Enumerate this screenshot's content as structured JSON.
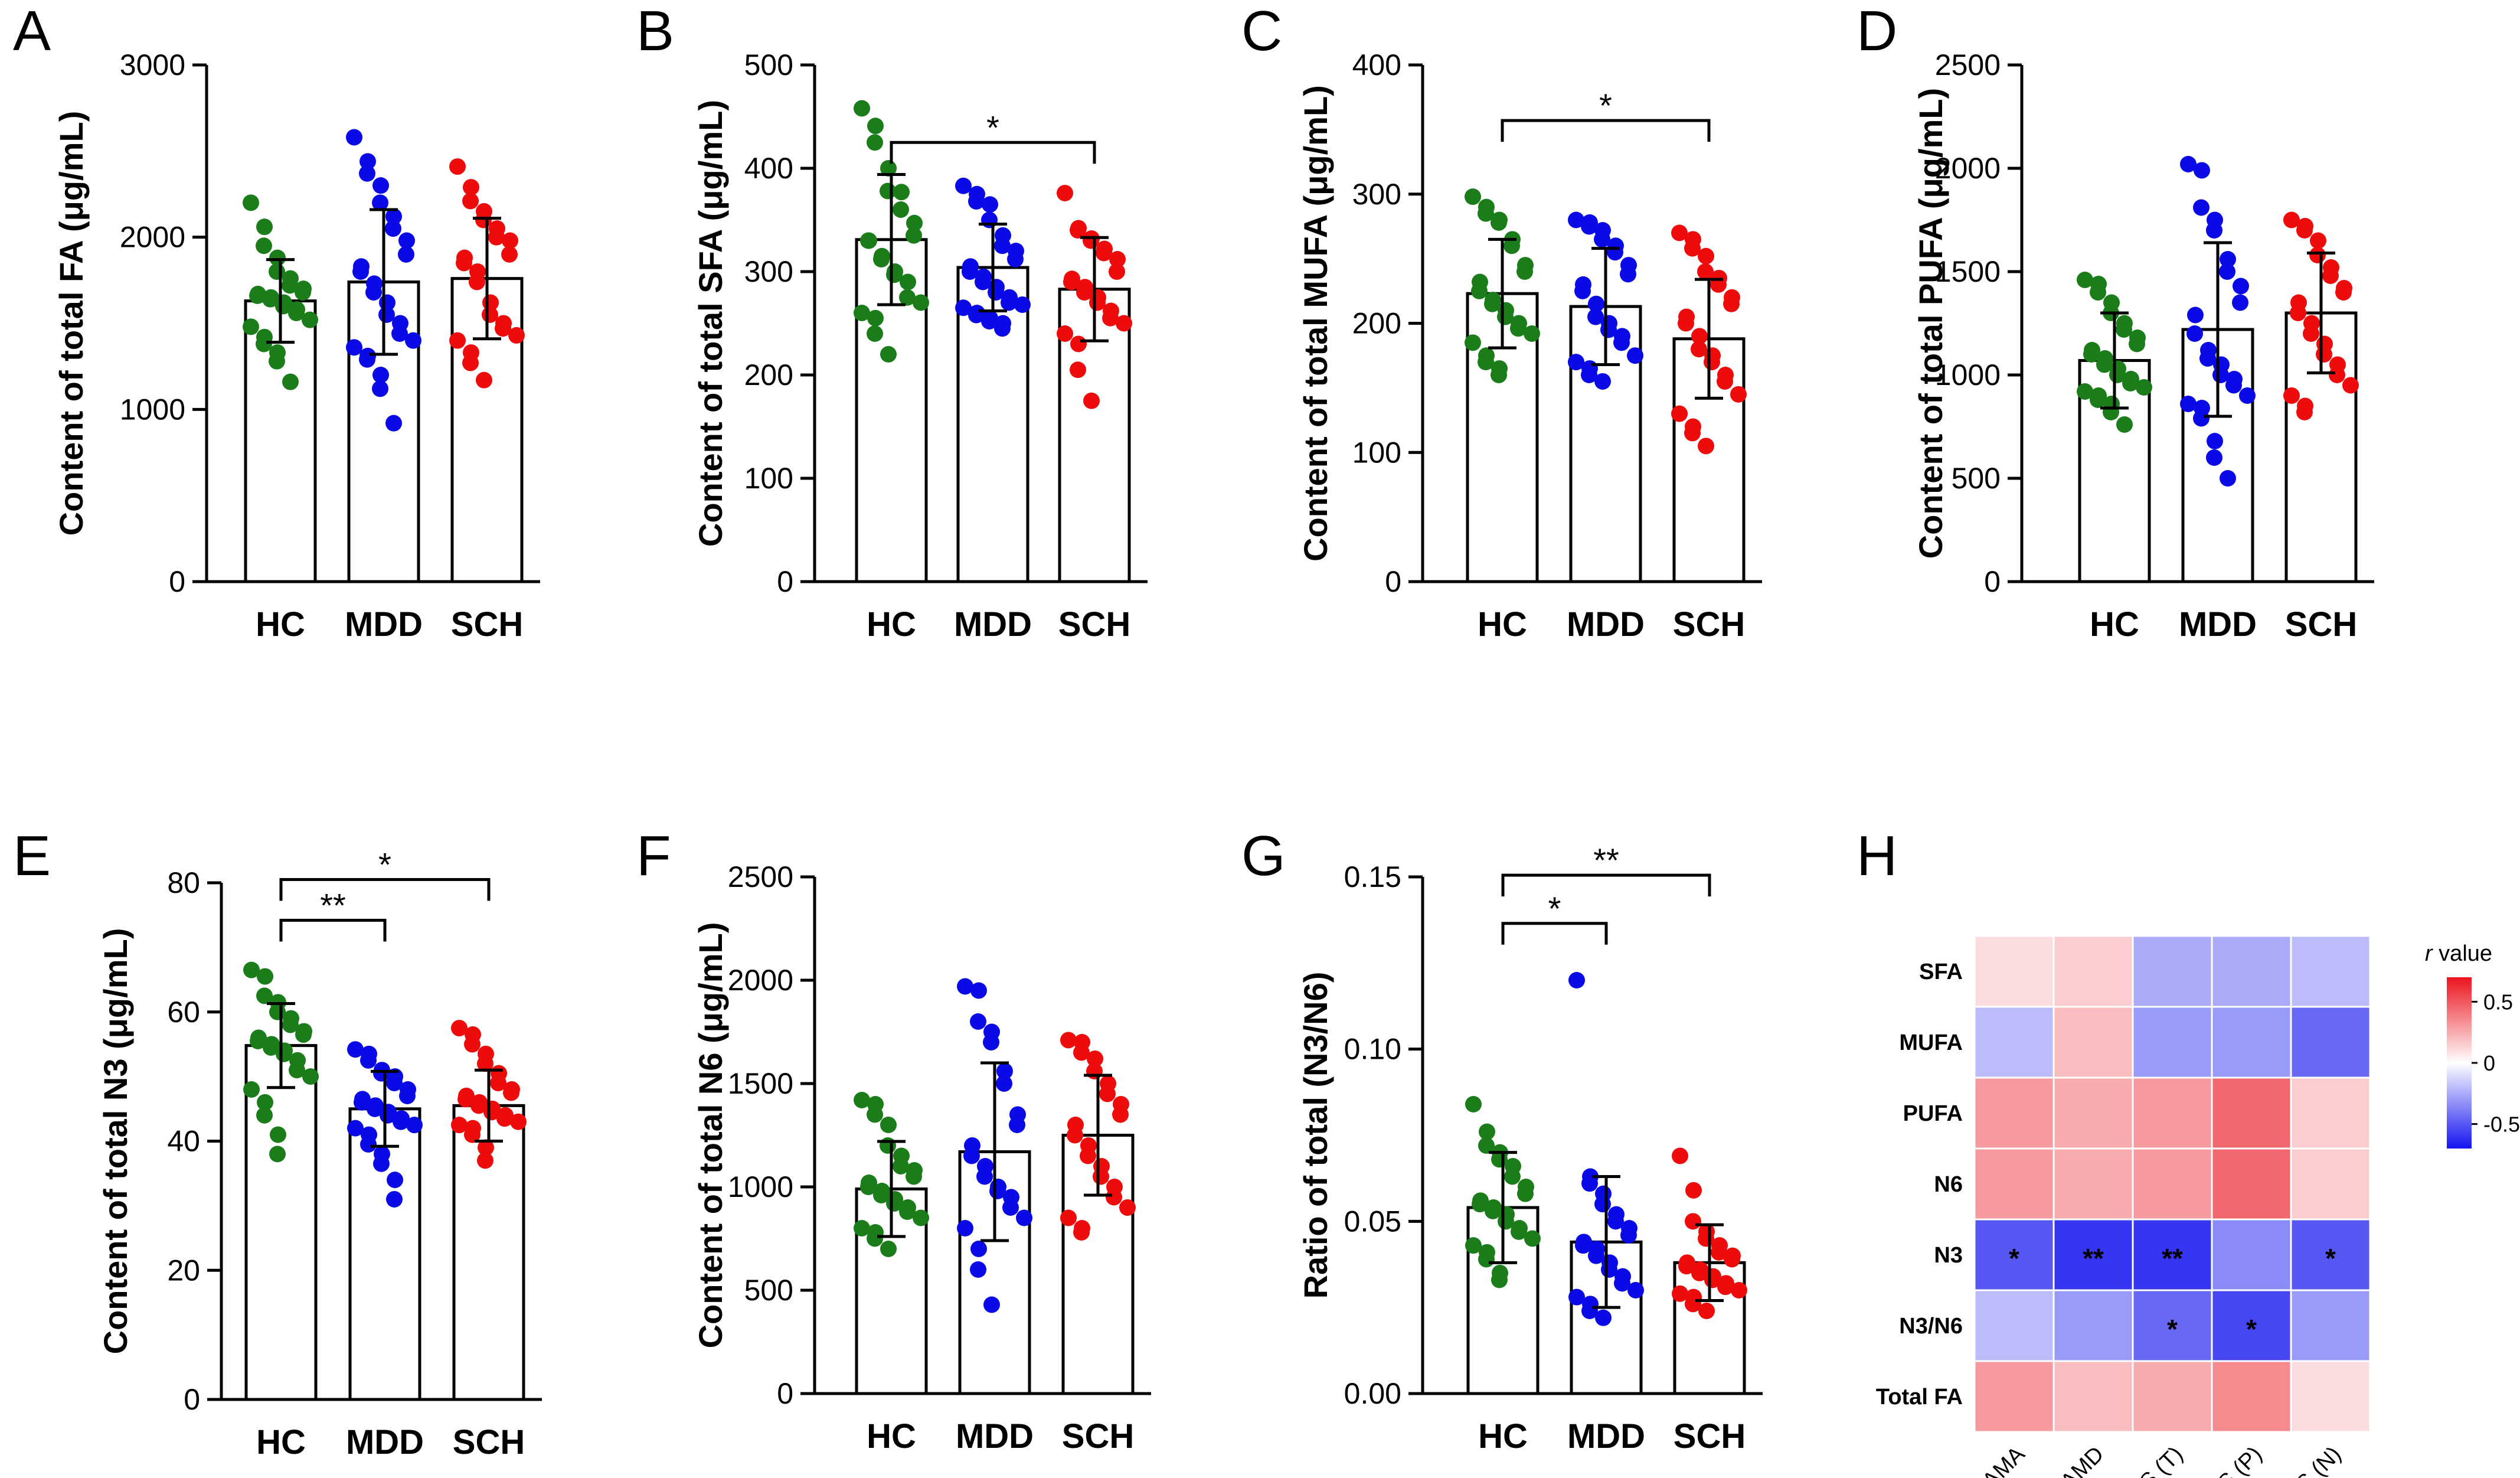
{
  "colors": {
    "HC": "#1a7d1a",
    "MDD": "#0a0ae6",
    "SCH": "#ee0b0b",
    "axis": "#000000"
  },
  "chart_data": [
    {
      "type": "bar",
      "panel": "A",
      "ylabel": "Content of total FA (μg/mL)",
      "categories": [
        "HC",
        "MDD",
        "SCH"
      ],
      "ylim": [
        0,
        3000
      ],
      "yticks": [
        0,
        1000,
        2000,
        3000
      ],
      "means": [
        1630,
        1740,
        1760
      ],
      "sd": [
        240,
        420,
        350
      ],
      "points": [
        [
          2200,
          2060,
          1950,
          1880,
          1800,
          1760,
          1720,
          1700,
          1680,
          1670,
          1660,
          1650,
          1640,
          1620,
          1600,
          1580,
          1560,
          1520,
          1480,
          1420,
          1380,
          1330,
          1280,
          1160
        ],
        [
          2580,
          2440,
          2370,
          2300,
          2200,
          2120,
          2050,
          1980,
          1900,
          1830,
          1800,
          1730,
          1680,
          1620,
          1550,
          1500,
          1440,
          1400,
          1360,
          1310,
          1290,
          1200,
          1120,
          920
        ],
        [
          2410,
          2290,
          2210,
          2150,
          2100,
          2050,
          2000,
          1980,
          1900,
          1880,
          1850,
          1800,
          1740,
          1620,
          1550,
          1500,
          1470,
          1430,
          1400,
          1330,
          1270,
          1170
        ]
      ],
      "sig": []
    },
    {
      "type": "bar",
      "panel": "B",
      "ylabel": "Content of total SFA (μg/mL)",
      "categories": [
        "HC",
        "MDD",
        "SCH"
      ],
      "ylim": [
        0,
        500
      ],
      "yticks": [
        0,
        100,
        200,
        300,
        400,
        500
      ],
      "means": [
        331,
        304,
        283
      ],
      "sd": [
        63,
        42,
        50
      ],
      "points": [
        [
          458,
          441,
          425,
          400,
          378,
          377,
          360,
          347,
          335,
          330,
          330,
          315,
          312,
          300,
          297,
          290,
          275,
          270,
          260,
          255,
          240,
          220
        ],
        [
          383,
          375,
          368,
          365,
          350,
          335,
          325,
          320,
          312,
          305,
          300,
          295,
          290,
          285,
          280,
          275,
          270,
          268,
          265,
          260,
          258,
          255,
          252,
          250,
          245
        ],
        [
          376,
          342,
          340,
          332,
          330,
          322,
          318,
          312,
          300,
          293,
          290,
          285,
          280,
          275,
          270,
          262,
          255,
          250,
          240,
          230,
          205,
          175
        ]
      ],
      "sig": [
        {
          "from": 0,
          "to": 2,
          "y": 425,
          "label": "*"
        }
      ]
    },
    {
      "type": "bar",
      "panel": "C",
      "ylabel": "Content of total MUFA (μg/mL)",
      "categories": [
        "HC",
        "MDD",
        "SCH"
      ],
      "ylim": [
        0,
        400
      ],
      "yticks": [
        0,
        100,
        200,
        300,
        400
      ],
      "means": [
        223,
        213,
        188
      ],
      "sd": [
        42,
        45,
        46
      ],
      "points": [
        [
          298,
          290,
          285,
          280,
          278,
          265,
          260,
          245,
          240,
          232,
          225,
          218,
          215,
          210,
          205,
          200,
          196,
          192,
          185,
          175,
          170,
          165,
          160
        ],
        [
          280,
          278,
          275,
          272,
          265,
          260,
          255,
          245,
          238,
          230,
          225,
          215,
          205,
          200,
          195,
          190,
          185,
          175,
          170,
          165,
          160,
          155
        ],
        [
          270,
          265,
          258,
          252,
          240,
          235,
          230,
          220,
          215,
          205,
          200,
          190,
          180,
          175,
          170,
          160,
          155,
          145,
          130,
          120,
          115,
          105
        ]
      ],
      "sig": [
        {
          "from": 0,
          "to": 2,
          "y": 357,
          "label": "*"
        }
      ]
    },
    {
      "type": "bar",
      "panel": "D",
      "ylabel": "Content of total PUFA (μg/mL)",
      "categories": [
        "HC",
        "MDD",
        "SCH"
      ],
      "ylim": [
        0,
        2500
      ],
      "yticks": [
        0,
        500,
        1000,
        1500,
        2000,
        2500
      ],
      "means": [
        1070,
        1220,
        1300
      ],
      "sd": [
        230,
        420,
        290
      ],
      "points": [
        [
          1460,
          1440,
          1400,
          1350,
          1300,
          1250,
          1220,
          1180,
          1150,
          1120,
          1100,
          1080,
          1050,
          1030,
          1000,
          980,
          960,
          940,
          920,
          900,
          880,
          860,
          820,
          760
        ],
        [
          2020,
          1990,
          1810,
          1750,
          1700,
          1560,
          1500,
          1430,
          1350,
          1290,
          1200,
          1120,
          1080,
          1050,
          1000,
          980,
          950,
          900,
          860,
          840,
          790,
          680,
          600,
          500
        ],
        [
          1750,
          1720,
          1700,
          1650,
          1580,
          1520,
          1480,
          1420,
          1400,
          1350,
          1300,
          1250,
          1200,
          1150,
          1100,
          1050,
          1000,
          950,
          900,
          850,
          820
        ]
      ],
      "sig": []
    },
    {
      "type": "bar",
      "panel": "E",
      "ylabel": "Content of total N3 (μg/mL)",
      "categories": [
        "HC",
        "MDD",
        "SCH"
      ],
      "ylim": [
        0,
        80
      ],
      "yticks": [
        0,
        20,
        40,
        60,
        80
      ],
      "means": [
        54.8,
        45.0,
        45.5
      ],
      "sd": [
        6.5,
        5.8,
        5.5
      ],
      "points": [
        [
          66.5,
          65.5,
          62.5,
          61.5,
          60,
          59,
          58,
          57,
          56.5,
          56,
          55.5,
          55,
          54.5,
          54,
          53.5,
          52.5,
          51,
          50,
          48,
          46,
          44,
          41,
          38
        ],
        [
          54.2,
          53.5,
          52.5,
          51,
          50.5,
          50,
          49,
          48,
          47,
          46.5,
          46,
          45.5,
          45,
          44.5,
          44,
          43.5,
          43,
          42.5,
          42,
          41,
          39.5,
          38,
          36.5,
          34,
          31
        ],
        [
          57.5,
          56.5,
          55,
          53.5,
          52,
          50.5,
          49,
          48,
          47.5,
          47,
          46.5,
          46,
          45.5,
          45,
          44.5,
          44,
          43.5,
          43,
          42.5,
          42,
          41,
          39,
          37
        ]
      ],
      "sig": [
        {
          "from": 0,
          "to": 2,
          "y": 80.5,
          "label": "*"
        },
        {
          "from": 0,
          "to": 1,
          "y": 74.2,
          "label": "**"
        }
      ]
    },
    {
      "type": "bar",
      "panel": "F",
      "ylabel": "Content of total N6 (μg/mL)",
      "categories": [
        "HC",
        "MDD",
        "SCH"
      ],
      "ylim": [
        0,
        2500
      ],
      "yticks": [
        0,
        500,
        1000,
        1500,
        2000,
        2500
      ],
      "means": [
        990,
        1170,
        1250
      ],
      "sd": [
        230,
        430,
        290
      ],
      "points": [
        [
          1420,
          1400,
          1350,
          1300,
          1200,
          1150,
          1100,
          1080,
          1050,
          1020,
          1000,
          980,
          960,
          940,
          920,
          900,
          880,
          850,
          800,
          780,
          750,
          700
        ],
        [
          1970,
          1950,
          1800,
          1750,
          1700,
          1560,
          1500,
          1350,
          1300,
          1200,
          1150,
          1100,
          1050,
          1000,
          980,
          950,
          900,
          850,
          800,
          700,
          600,
          430
        ],
        [
          1710,
          1700,
          1650,
          1620,
          1560,
          1500,
          1450,
          1400,
          1350,
          1300,
          1250,
          1200,
          1150,
          1100,
          1050,
          1000,
          950,
          900,
          850,
          800,
          780
        ]
      ],
      "sig": []
    },
    {
      "type": "bar",
      "panel": "G",
      "ylabel": "Ratio of total (N3/N6)",
      "categories": [
        "HC",
        "MDD",
        "SCH"
      ],
      "ylim": [
        0,
        0.15
      ],
      "yticks": [
        "0.00",
        "0.05",
        "0.10",
        "0.15"
      ],
      "means": [
        0.054,
        0.044,
        0.038
      ],
      "sd": [
        0.016,
        0.019,
        0.011
      ],
      "points": [
        [
          0.084,
          0.076,
          0.072,
          0.07,
          0.068,
          0.066,
          0.063,
          0.06,
          0.058,
          0.056,
          0.055,
          0.054,
          0.053,
          0.052,
          0.05,
          0.048,
          0.047,
          0.045,
          0.043,
          0.041,
          0.039,
          0.035,
          0.033
        ],
        [
          0.12,
          0.063,
          0.061,
          0.058,
          0.055,
          0.052,
          0.05,
          0.048,
          0.046,
          0.044,
          0.043,
          0.042,
          0.04,
          0.038,
          0.036,
          0.034,
          0.032,
          0.03,
          0.028,
          0.026,
          0.024,
          0.022
        ],
        [
          0.069,
          0.059,
          0.05,
          0.047,
          0.045,
          0.043,
          0.041,
          0.04,
          0.039,
          0.038,
          0.037,
          0.036,
          0.035,
          0.034,
          0.033,
          0.032,
          0.031,
          0.03,
          0.029,
          0.028,
          0.026,
          0.024
        ]
      ],
      "sig": [
        {
          "from": 0,
          "to": 2,
          "y": 0.1505,
          "label": "**"
        },
        {
          "from": 0,
          "to": 1,
          "y": 0.1365,
          "label": "*"
        }
      ]
    },
    {
      "type": "heatmap",
      "panel": "H",
      "rows": [
        "SFA",
        "MUFA",
        "PUFA",
        "N6",
        "N3",
        "N3/N6",
        "Total FA"
      ],
      "cols": [
        "HAMA",
        "HAMD",
        "PANSS (T)",
        "PANSS (P)",
        "PANSS (N)"
      ],
      "values": [
        [
          0.1,
          0.15,
          -0.25,
          -0.25,
          -0.2
        ],
        [
          -0.2,
          0.2,
          -0.3,
          -0.3,
          -0.45
        ],
        [
          0.3,
          0.25,
          0.3,
          0.45,
          0.15
        ],
        [
          0.3,
          0.25,
          0.3,
          0.45,
          0.15
        ],
        [
          -0.5,
          -0.6,
          -0.6,
          -0.35,
          -0.5
        ],
        [
          -0.2,
          -0.3,
          -0.45,
          -0.55,
          -0.3
        ],
        [
          0.3,
          0.2,
          0.25,
          0.35,
          0.1
        ]
      ],
      "sig": [
        [
          "",
          "",
          "",
          "",
          ""
        ],
        [
          "",
          "",
          "",
          "",
          ""
        ],
        [
          "",
          "",
          "",
          "",
          ""
        ],
        [
          "",
          "",
          "",
          "",
          ""
        ],
        [
          "*",
          "**",
          "**",
          "",
          "*"
        ],
        [
          "",
          "",
          "*",
          "*",
          ""
        ],
        [
          "",
          "",
          "",
          "",
          ""
        ]
      ],
      "colorbar": {
        "title_italic": "r",
        "title_rest": " value",
        "range": [
          -0.7,
          0.7
        ],
        "ticks": [
          "0.5",
          "0",
          "-0.5"
        ],
        "tick_values": [
          0.5,
          0,
          -0.5
        ]
      }
    }
  ]
}
